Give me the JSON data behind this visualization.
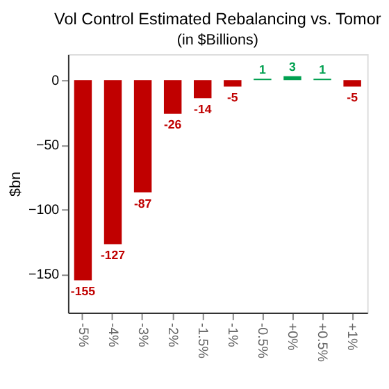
{
  "chart_data": {
    "type": "bar",
    "title": "Vol Control Estimated Rebalancing vs. Tomor",
    "subtitle": "(in $Billions)",
    "ylabel": "$bn",
    "categories": [
      "-5%",
      "-4%",
      "-3%",
      "-2%",
      "-1.5%",
      "-1%",
      "-0.5%",
      "+0%",
      "+0.5%",
      "+1%"
    ],
    "values": [
      -155,
      -127,
      -87,
      -26,
      -14,
      -5,
      1,
      3,
      1,
      -5
    ],
    "colors": [
      "#c00000",
      "#c00000",
      "#c00000",
      "#c00000",
      "#c00000",
      "#c00000",
      "#00a050",
      "#00a050",
      "#00a050",
      "#c00000"
    ],
    "ylim": [
      -180,
      20
    ],
    "yticks": [
      0,
      -50,
      -100,
      -150
    ],
    "data_labels": true,
    "grid": false
  }
}
